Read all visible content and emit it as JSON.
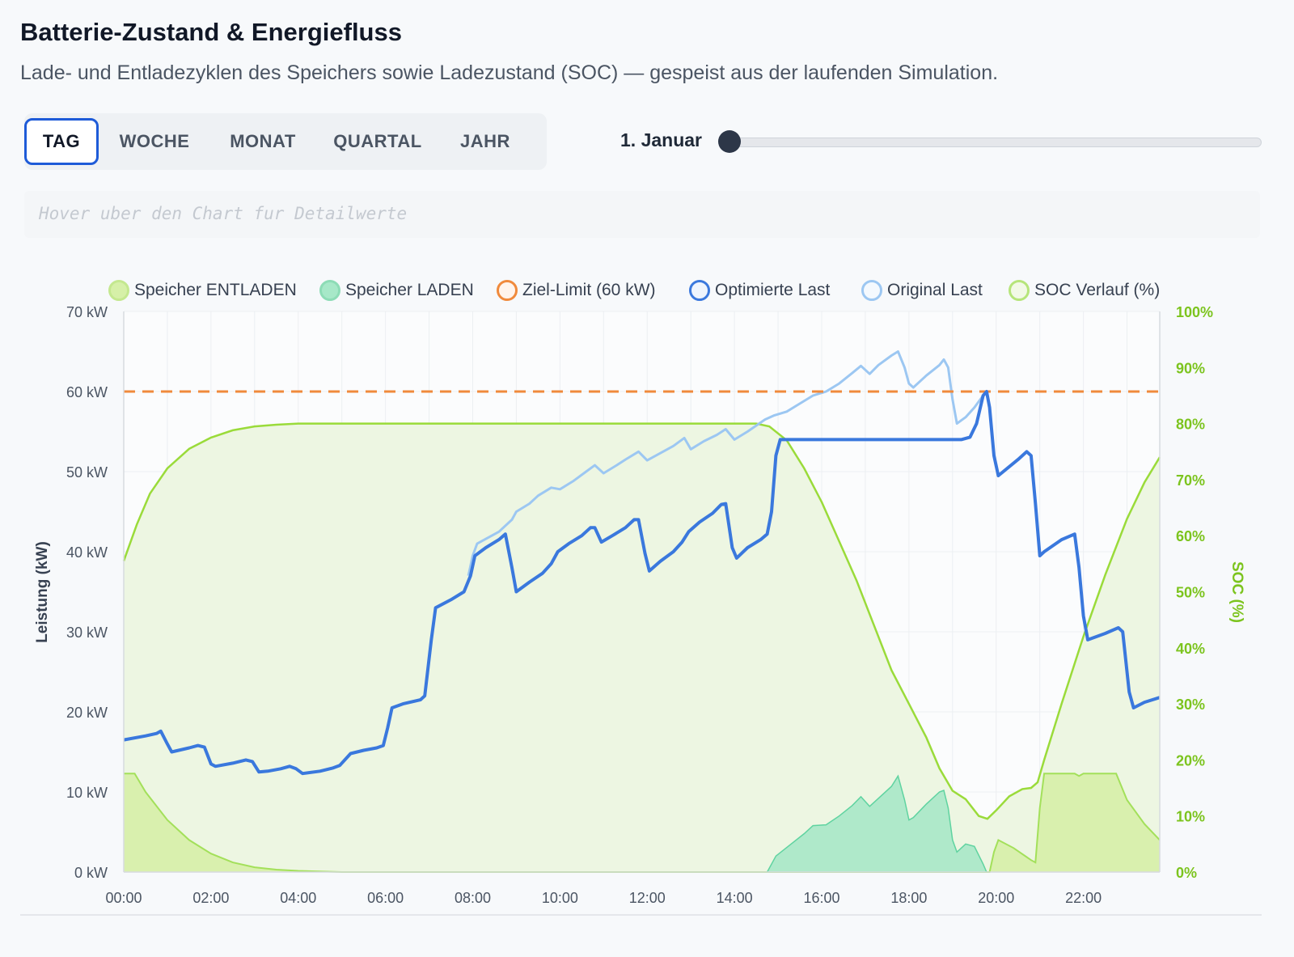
{
  "header": {
    "title": "Batterie-Zustand & Energiefluss",
    "subtitle": "Lade- und Entladezyklen des Speichers sowie Ladezustand (SOC) — gespeist aus der laufenden Simulation."
  },
  "tabs": [
    {
      "label": "TAG",
      "active": true
    },
    {
      "label": "WOCHE",
      "active": false
    },
    {
      "label": "MONAT",
      "active": false
    },
    {
      "label": "QUARTAL",
      "active": false
    },
    {
      "label": "JAHR",
      "active": false
    }
  ],
  "date_slider": {
    "label": "1. Januar",
    "position": 0
  },
  "hover_hint": "Hover uber den Chart fur Detailwerte",
  "colors": {
    "discharge_fill": "#d6f0a8",
    "discharge_border": "#a3e05a",
    "charge_fill": "#a7e8c8",
    "charge_border": "#5fd3a0",
    "limit": "#f08a3c",
    "optimized": "#3a78dd",
    "original": "#9cc7f2",
    "soc": "#9adb3a",
    "soc_fill": "#edf6e2",
    "soc_axis": "#7cc41e"
  },
  "chart_data": {
    "type": "line",
    "legend": [
      {
        "name": "Speicher ENTLADEN",
        "swatch": "discharge"
      },
      {
        "name": "Speicher LADEN",
        "swatch": "charge"
      },
      {
        "name": "Ziel-Limit (60 kW)",
        "swatch": "limit"
      },
      {
        "name": "Optimierte Last",
        "swatch": "optimized"
      },
      {
        "name": "Original Last",
        "swatch": "original"
      },
      {
        "name": "SOC Verlauf (%)",
        "swatch": "soc"
      }
    ],
    "legend_position": "top",
    "grid": true,
    "x_ticks": [
      "00:00",
      "02:00",
      "04:00",
      "06:00",
      "08:00",
      "10:00",
      "12:00",
      "14:00",
      "16:00",
      "18:00",
      "20:00",
      "22:00"
    ],
    "x_range_hours": [
      0,
      23.75
    ],
    "y_left": {
      "label": "Leistung (kW)",
      "ticks": [
        "0 kW",
        "10 kW",
        "20 kW",
        "30 kW",
        "40 kW",
        "50 kW",
        "60 kW",
        "70 kW"
      ],
      "range": [
        0,
        70
      ]
    },
    "y_right": {
      "label": "SOC (%)",
      "ticks": [
        "0%",
        "10%",
        "20%",
        "30%",
        "40%",
        "50%",
        "60%",
        "70%",
        "80%",
        "90%",
        "100%"
      ],
      "range": [
        0,
        100
      ]
    },
    "limit_kw": 60,
    "series": [
      {
        "name": "Optimierte Last",
        "key": "optimized",
        "points": [
          [
            0,
            16.5
          ],
          [
            0.5,
            17
          ],
          [
            0.75,
            17.3
          ],
          [
            0.85,
            17.6
          ],
          [
            1.0,
            16
          ],
          [
            1.1,
            15
          ],
          [
            1.5,
            15.5
          ],
          [
            1.7,
            15.8
          ],
          [
            1.85,
            15.6
          ],
          [
            2.0,
            13.5
          ],
          [
            2.1,
            13.2
          ],
          [
            2.5,
            13.6
          ],
          [
            2.8,
            14
          ],
          [
            2.95,
            13.8
          ],
          [
            3.1,
            12.5
          ],
          [
            3.3,
            12.6
          ],
          [
            3.6,
            12.9
          ],
          [
            3.8,
            13.2
          ],
          [
            3.95,
            12.9
          ],
          [
            4.1,
            12.3
          ],
          [
            4.5,
            12.6
          ],
          [
            4.8,
            13
          ],
          [
            4.95,
            13.3
          ],
          [
            5.2,
            14.8
          ],
          [
            5.5,
            15.2
          ],
          [
            5.8,
            15.5
          ],
          [
            5.95,
            15.8
          ],
          [
            6.05,
            18
          ],
          [
            6.15,
            20.5
          ],
          [
            6.4,
            21
          ],
          [
            6.8,
            21.5
          ],
          [
            6.9,
            22
          ],
          [
            7.05,
            29
          ],
          [
            7.15,
            33
          ],
          [
            7.5,
            34
          ],
          [
            7.8,
            35
          ],
          [
            7.95,
            37
          ],
          [
            8.05,
            39.5
          ],
          [
            8.3,
            40.5
          ],
          [
            8.6,
            41.5
          ],
          [
            8.75,
            42.2
          ],
          [
            8.9,
            38
          ],
          [
            9.0,
            35
          ],
          [
            9.3,
            36.2
          ],
          [
            9.6,
            37.3
          ],
          [
            9.8,
            38.5
          ],
          [
            9.95,
            40
          ],
          [
            10.2,
            41
          ],
          [
            10.5,
            42
          ],
          [
            10.7,
            43
          ],
          [
            10.8,
            43
          ],
          [
            10.95,
            41.2
          ],
          [
            11.2,
            42
          ],
          [
            11.5,
            43
          ],
          [
            11.7,
            44
          ],
          [
            11.8,
            44
          ],
          [
            11.95,
            39.8
          ],
          [
            12.05,
            37.6
          ],
          [
            12.3,
            38.8
          ],
          [
            12.6,
            40
          ],
          [
            12.8,
            41.2
          ],
          [
            12.95,
            42.5
          ],
          [
            13.2,
            43.7
          ],
          [
            13.5,
            44.8
          ],
          [
            13.7,
            45.9
          ],
          [
            13.8,
            46
          ],
          [
            13.95,
            40.5
          ],
          [
            14.05,
            39.2
          ],
          [
            14.3,
            40.5
          ],
          [
            14.6,
            41.5
          ],
          [
            14.75,
            42.2
          ],
          [
            14.85,
            45
          ],
          [
            14.95,
            52
          ],
          [
            15.05,
            54
          ],
          [
            15.5,
            54
          ],
          [
            17,
            54
          ],
          [
            18.5,
            54
          ],
          [
            19.2,
            54
          ],
          [
            19.4,
            54.3
          ],
          [
            19.55,
            56
          ],
          [
            19.7,
            59.5
          ],
          [
            19.78,
            60
          ],
          [
            19.85,
            58
          ],
          [
            19.95,
            52
          ],
          [
            20.05,
            49.5
          ],
          [
            20.5,
            51.5
          ],
          [
            20.7,
            52.5
          ],
          [
            20.8,
            52
          ],
          [
            20.9,
            46
          ],
          [
            21.0,
            39.5
          ],
          [
            21.1,
            40
          ],
          [
            21.5,
            41.5
          ],
          [
            21.8,
            42.2
          ],
          [
            21.9,
            38
          ],
          [
            22.0,
            32
          ],
          [
            22.1,
            29
          ],
          [
            22.5,
            29.8
          ],
          [
            22.8,
            30.5
          ],
          [
            22.9,
            30
          ],
          [
            23.05,
            22.5
          ],
          [
            23.15,
            20.5
          ],
          [
            23.4,
            21.2
          ],
          [
            23.75,
            21.8
          ]
        ]
      },
      {
        "name": "Original Last",
        "key": "original",
        "points": [
          [
            7.9,
            37
          ],
          [
            8.0,
            39.5
          ],
          [
            8.1,
            41
          ],
          [
            8.6,
            42.5
          ],
          [
            8.9,
            44
          ],
          [
            9.0,
            45
          ],
          [
            9.3,
            46
          ],
          [
            9.5,
            47
          ],
          [
            9.8,
            48
          ],
          [
            10.0,
            47.8
          ],
          [
            10.3,
            48.8
          ],
          [
            10.6,
            50
          ],
          [
            10.8,
            50.8
          ],
          [
            11.0,
            49.8
          ],
          [
            11.3,
            50.8
          ],
          [
            11.5,
            51.5
          ],
          [
            11.8,
            52.5
          ],
          [
            12.0,
            51.4
          ],
          [
            12.3,
            52.3
          ],
          [
            12.6,
            53.2
          ],
          [
            12.85,
            54.2
          ],
          [
            13.0,
            52.8
          ],
          [
            13.3,
            53.8
          ],
          [
            13.6,
            54.6
          ],
          [
            13.8,
            55.3
          ],
          [
            14.0,
            54
          ],
          [
            14.3,
            55
          ],
          [
            14.7,
            56.5
          ],
          [
            14.9,
            57
          ],
          [
            15.2,
            57.5
          ],
          [
            15.5,
            58.5
          ],
          [
            15.8,
            59.5
          ],
          [
            16.1,
            60
          ],
          [
            16.4,
            61
          ],
          [
            16.7,
            62.3
          ],
          [
            16.9,
            63.2
          ],
          [
            17.1,
            62.2
          ],
          [
            17.3,
            63.3
          ],
          [
            17.6,
            64.5
          ],
          [
            17.75,
            65
          ],
          [
            17.9,
            63
          ],
          [
            18.0,
            61
          ],
          [
            18.1,
            60.5
          ],
          [
            18.4,
            62
          ],
          [
            18.7,
            63.3
          ],
          [
            18.8,
            64
          ],
          [
            18.9,
            63
          ],
          [
            19.0,
            59
          ],
          [
            19.1,
            56
          ],
          [
            19.3,
            56.8
          ],
          [
            19.5,
            58
          ],
          [
            19.7,
            59.5
          ],
          [
            19.78,
            60
          ]
        ]
      },
      {
        "name": "SOC Verlauf (%)",
        "key": "soc",
        "axis": "right",
        "points": [
          [
            0,
            55.5
          ],
          [
            0.3,
            62
          ],
          [
            0.6,
            67.5
          ],
          [
            1.0,
            72
          ],
          [
            1.5,
            75.5
          ],
          [
            2.0,
            77.5
          ],
          [
            2.5,
            78.8
          ],
          [
            3.0,
            79.5
          ],
          [
            3.5,
            79.8
          ],
          [
            4.0,
            80
          ],
          [
            6,
            80
          ],
          [
            8,
            80
          ],
          [
            10,
            80
          ],
          [
            12,
            80
          ],
          [
            13,
            80
          ],
          [
            14,
            80
          ],
          [
            14.5,
            80
          ],
          [
            14.8,
            79.5
          ],
          [
            15.2,
            77
          ],
          [
            15.6,
            72
          ],
          [
            16.0,
            66
          ],
          [
            16.4,
            59
          ],
          [
            16.8,
            52
          ],
          [
            17.2,
            44
          ],
          [
            17.6,
            36
          ],
          [
            18.0,
            30
          ],
          [
            18.4,
            24
          ],
          [
            18.7,
            18.5
          ],
          [
            19.0,
            14.5
          ],
          [
            19.3,
            13
          ],
          [
            19.6,
            10
          ],
          [
            19.8,
            9.5
          ],
          [
            20.0,
            11
          ],
          [
            20.3,
            13.5
          ],
          [
            20.6,
            14.8
          ],
          [
            20.8,
            15
          ],
          [
            20.95,
            16
          ],
          [
            21.1,
            20
          ],
          [
            21.5,
            30
          ],
          [
            22.0,
            42
          ],
          [
            22.5,
            53
          ],
          [
            23.0,
            63
          ],
          [
            23.4,
            69.5
          ],
          [
            23.75,
            74
          ]
        ]
      },
      {
        "name": "Speicher ENTLADEN",
        "key": "discharge",
        "points": [
          [
            0,
            12.3
          ],
          [
            0.25,
            12.3
          ],
          [
            0.5,
            10
          ],
          [
            1.0,
            6.5
          ],
          [
            1.5,
            4
          ],
          [
            2.0,
            2.3
          ],
          [
            2.5,
            1.2
          ],
          [
            3.0,
            0.6
          ],
          [
            3.5,
            0.3
          ],
          [
            4.0,
            0.15
          ],
          [
            5,
            0
          ],
          [
            19.78,
            0
          ],
          [
            19.85,
            0
          ],
          [
            19.95,
            2.5
          ],
          [
            20.05,
            4
          ],
          [
            20.4,
            3
          ],
          [
            20.8,
            1.5
          ],
          [
            20.9,
            1.2
          ],
          [
            21.0,
            8
          ],
          [
            21.1,
            12.3
          ],
          [
            21.5,
            12.3
          ],
          [
            21.8,
            12.3
          ],
          [
            21.9,
            12
          ],
          [
            22.0,
            12.3
          ],
          [
            22.5,
            12.3
          ],
          [
            22.75,
            12.3
          ],
          [
            23.0,
            9
          ],
          [
            23.4,
            6
          ],
          [
            23.75,
            4
          ]
        ]
      },
      {
        "name": "Speicher LADEN",
        "key": "charge",
        "points": [
          [
            14.75,
            0
          ],
          [
            14.95,
            2
          ],
          [
            15.3,
            3.5
          ],
          [
            15.6,
            4.8
          ],
          [
            15.8,
            5.8
          ],
          [
            16.1,
            5.9
          ],
          [
            16.4,
            7
          ],
          [
            16.7,
            8.3
          ],
          [
            16.9,
            9.4
          ],
          [
            17.1,
            8.2
          ],
          [
            17.3,
            9.2
          ],
          [
            17.6,
            10.7
          ],
          [
            17.75,
            12
          ],
          [
            17.9,
            9
          ],
          [
            18.0,
            6.5
          ],
          [
            18.1,
            6.8
          ],
          [
            18.4,
            8.5
          ],
          [
            18.7,
            10
          ],
          [
            18.8,
            10.2
          ],
          [
            18.9,
            8
          ],
          [
            19.0,
            4
          ],
          [
            19.1,
            2.5
          ],
          [
            19.3,
            3.5
          ],
          [
            19.5,
            3.2
          ],
          [
            19.7,
            1
          ],
          [
            19.78,
            0
          ]
        ]
      }
    ]
  }
}
